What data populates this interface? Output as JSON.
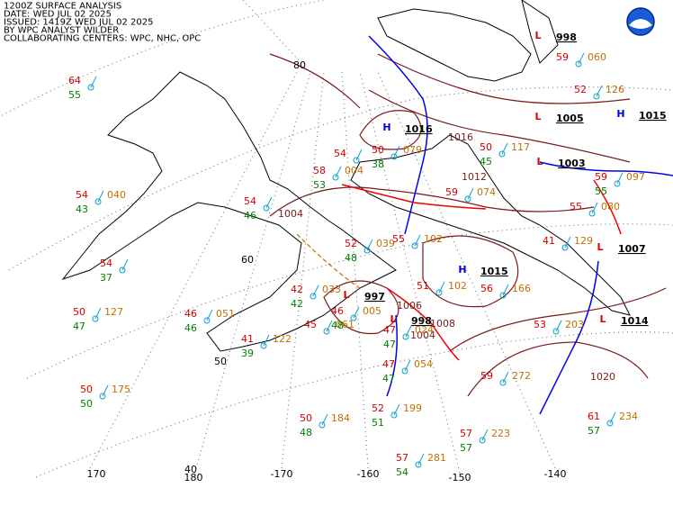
{
  "header": {
    "lines": [
      "1200Z SURFACE ANALYSIS",
      "DATE: WED JUL 02 2025",
      "ISSUED: 1419Z WED JUL 02 2025",
      "BY WPC ANALYST WILDER",
      "COLLABORATING CENTERS: WPC, NHC, OPC"
    ]
  },
  "grid_labels": [
    "80",
    "60",
    "50",
    "40",
    "170",
    "180",
    "-170",
    "-160",
    "-150",
    "-140"
  ],
  "pressure_centers": [
    {
      "type": "H",
      "value": "1016"
    },
    {
      "type": "L",
      "value": "997"
    },
    {
      "type": "L",
      "value": "998"
    },
    {
      "type": "H",
      "value": "1015"
    },
    {
      "type": "L",
      "value": "1003"
    },
    {
      "type": "L",
      "value": "1005"
    },
    {
      "type": "L",
      "value": "998"
    },
    {
      "type": "H",
      "value": "1015"
    },
    {
      "type": "L",
      "value": "1007"
    },
    {
      "type": "L",
      "value": "1014"
    }
  ],
  "isobar_labels": [
    "1004",
    "1012",
    "1016",
    "1020",
    "1004",
    "1006",
    "1008"
  ],
  "stations": [
    {
      "temp": "64",
      "dew": "55"
    },
    {
      "temp": "54",
      "pressure": "040",
      "dew": "43"
    },
    {
      "temp": "54",
      "dew": "37"
    },
    {
      "temp": "50",
      "pressure": "127",
      "dew": "47"
    },
    {
      "temp": "50",
      "pressure": "175",
      "dew": "50"
    },
    {
      "temp": "46",
      "pressure": "051",
      "dew": "46"
    },
    {
      "temp": "41",
      "pressure": "122",
      "dew": "39"
    },
    {
      "temp": "54",
      "dew": "46"
    },
    {
      "temp": "54"
    },
    {
      "temp": "58",
      "pressure": "004",
      "dew": "53"
    },
    {
      "temp": "50",
      "pressure": "079",
      "dew": "38"
    },
    {
      "temp": "52",
      "pressure": "039",
      "dew": "48"
    },
    {
      "temp": "42",
      "pressure": "033",
      "dew": "42"
    },
    {
      "temp": "45",
      "pressure": "061"
    },
    {
      "temp": "46",
      "pressure": "005",
      "dew": "48"
    },
    {
      "temp": "47",
      "pressure": "024",
      "dew": "47"
    },
    {
      "temp": "47",
      "pressure": "054",
      "dew": "47"
    },
    {
      "temp": "52",
      "pressure": "199",
      "dew": "51"
    },
    {
      "temp": "50",
      "pressure": "184",
      "dew": "48"
    },
    {
      "temp": "57",
      "pressure": "223",
      "dew": "57"
    },
    {
      "temp": "57",
      "pressure": "281",
      "dew": "54"
    },
    {
      "temp": "59",
      "pressure": "272"
    },
    {
      "temp": "53",
      "pressure": "203"
    },
    {
      "temp": "61",
      "pressure": "234",
      "dew": "57"
    },
    {
      "temp": "56",
      "pressure": "166"
    },
    {
      "temp": "55",
      "pressure": "102"
    },
    {
      "temp": "51",
      "pressure": "102"
    },
    {
      "temp": "50",
      "pressure": "117",
      "dew": "45"
    },
    {
      "temp": "59",
      "pressure": "074"
    },
    {
      "temp": "41",
      "pressure": "129"
    },
    {
      "temp": "55",
      "pressure": "080"
    },
    {
      "temp": "59",
      "pressure": "097",
      "dew": "55"
    },
    {
      "temp": "52",
      "pressure": "126"
    },
    {
      "temp": "59",
      "pressure": "060"
    }
  ]
}
